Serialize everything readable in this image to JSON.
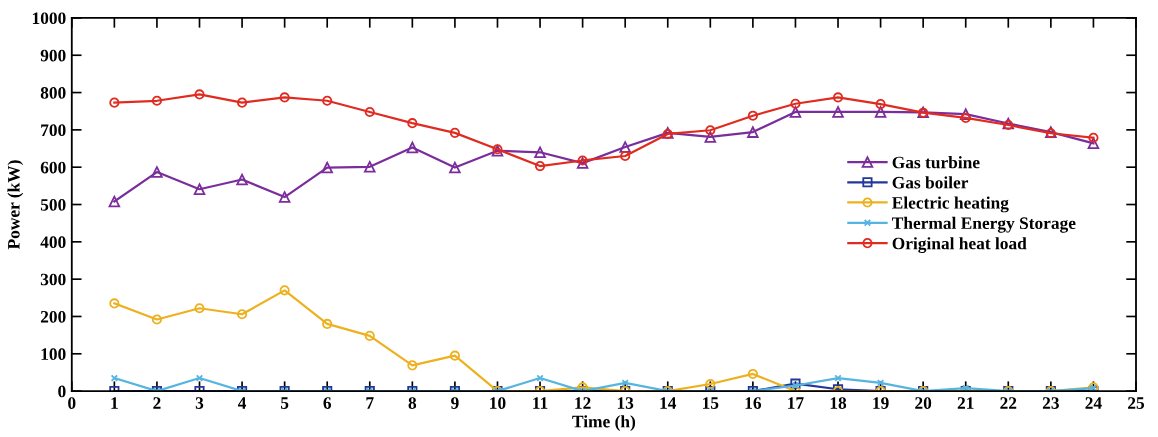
{
  "chart_data": {
    "type": "line",
    "xlabel": "Time (h)",
    "ylabel": "Power (kW)",
    "x": [
      1,
      2,
      3,
      4,
      5,
      6,
      7,
      8,
      9,
      10,
      11,
      12,
      13,
      14,
      15,
      16,
      17,
      18,
      19,
      20,
      21,
      22,
      23,
      24
    ],
    "xlim": [
      0,
      25
    ],
    "xticks": [
      0,
      1,
      2,
      3,
      4,
      5,
      6,
      7,
      8,
      9,
      10,
      11,
      12,
      13,
      14,
      15,
      16,
      17,
      18,
      19,
      20,
      21,
      22,
      23,
      24,
      25
    ],
    "ylim": [
      0,
      1000
    ],
    "yticks": [
      0,
      100,
      200,
      300,
      400,
      500,
      600,
      700,
      800,
      900,
      1000
    ],
    "grid": false,
    "legend": "center right",
    "line_style": "solid",
    "series": [
      {
        "name": "Gas turbine",
        "color": "#7b2d9c",
        "marker": "triangle",
        "values": [
          508,
          587,
          541,
          567,
          520,
          599,
          601,
          653,
          599,
          644,
          640,
          611,
          654,
          692,
          681,
          694,
          748,
          748,
          748,
          747,
          742,
          717,
          694,
          664
        ]
      },
      {
        "name": "Gas boiler",
        "color": "#23379a",
        "marker": "square",
        "values": [
          0,
          0,
          0,
          0,
          0,
          0,
          0,
          0,
          0,
          0,
          0,
          0,
          0,
          0,
          0,
          0,
          20,
          5,
          0,
          0,
          0,
          0,
          0,
          0
        ]
      },
      {
        "name": "Electric heating",
        "color": "#edb120",
        "marker": "circle",
        "values": [
          235,
          192,
          222,
          206,
          270,
          180,
          148,
          69,
          95,
          0,
          0,
          10,
          0,
          0,
          19,
          46,
          0,
          0,
          0,
          0,
          0,
          0,
          0,
          10
        ]
      },
      {
        "name": "Thermal Energy Storage",
        "color": "#56b4e0",
        "marker": "cross",
        "values": [
          35,
          0,
          35,
          0,
          0,
          0,
          0,
          0,
          0,
          0,
          35,
          0,
          22,
          0,
          0,
          0,
          15,
          35,
          22,
          0,
          8,
          0,
          0,
          8
        ]
      },
      {
        "name": "Original heat load",
        "color": "#e02b20",
        "marker": "circle",
        "values": [
          773,
          778,
          795,
          773,
          787,
          778,
          748,
          718,
          692,
          648,
          603,
          618,
          630,
          689,
          699,
          738,
          770,
          787,
          769,
          746,
          732,
          713,
          691,
          679
        ]
      }
    ]
  }
}
